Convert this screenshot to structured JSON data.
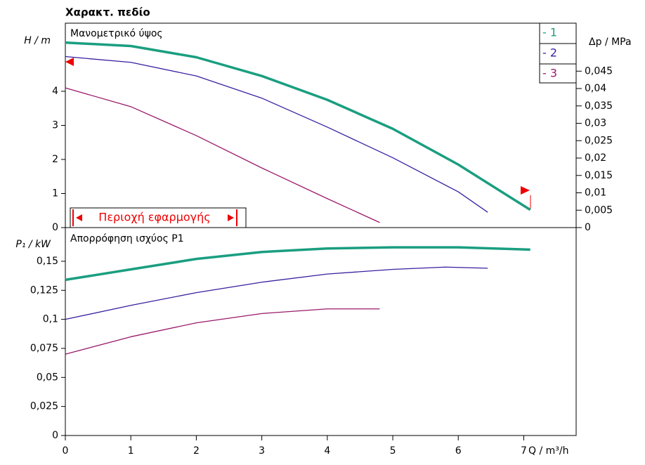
{
  "title": "Χαρακτ. πεδίο",
  "chart_data": [
    {
      "type": "line",
      "title": "Μανομετρικό ύψος",
      "ylabel": "H / m",
      "y2label": "Δp / MPa",
      "annotation": "Περιοχή εφαρμογής",
      "xlim": [
        0,
        7.8
      ],
      "ylim": [
        0,
        6
      ],
      "yticks": [
        0,
        1,
        2,
        3,
        4
      ],
      "y2lim": [
        0,
        0.0588
      ],
      "y2ticks": [
        0,
        {
          "value": 0.005,
          "label": "0,005"
        },
        {
          "value": 0.01,
          "label": "0,01"
        },
        {
          "value": 0.015,
          "label": "0,015"
        },
        {
          "value": 0.02,
          "label": "0,02"
        },
        {
          "value": 0.025,
          "label": "0,025"
        },
        {
          "value": 0.03,
          "label": "0,03"
        },
        {
          "value": 0.035,
          "label": "0,035"
        },
        {
          "value": 0.04,
          "label": "0,04"
        },
        {
          "value": 0.045,
          "label": "0,045"
        }
      ],
      "series": [
        {
          "name": "- 1",
          "color": "#1a9e80",
          "width": 3.5,
          "x": [
            0,
            1,
            2,
            3,
            4,
            5,
            6,
            7.1
          ],
          "values": [
            5.43,
            5.33,
            5.0,
            4.45,
            3.75,
            2.9,
            1.85,
            0.52
          ]
        },
        {
          "name": "- 2",
          "color": "#3a1fa0",
          "width": 1.3,
          "x": [
            0,
            1,
            2,
            3,
            4,
            5,
            6,
            6.45
          ],
          "values": [
            5.02,
            4.85,
            4.45,
            3.8,
            2.95,
            2.05,
            1.05,
            0.45
          ]
        },
        {
          "name": "- 3",
          "color": "#9a1a6a",
          "width": 1.3,
          "x": [
            0,
            1,
            2,
            3,
            4,
            4.8
          ],
          "values": [
            4.1,
            3.55,
            2.7,
            1.75,
            0.85,
            0.15
          ]
        }
      ]
    },
    {
      "type": "line",
      "title": "Απορρόφηση ισχύος P1",
      "ylabel": "P₁ / kW",
      "xlabel": "Q / m³/h",
      "xlim": [
        0,
        7.8
      ],
      "xticks": [
        0,
        1,
        2,
        3,
        4,
        5,
        6,
        7
      ],
      "ylim": [
        0,
        0.179
      ],
      "yticks": [
        0,
        {
          "value": 0.025,
          "label": "0,025"
        },
        {
          "value": 0.05,
          "label": "0,05"
        },
        {
          "value": 0.075,
          "label": "0,075"
        },
        {
          "value": 0.1,
          "label": "0,1"
        },
        {
          "value": 0.125,
          "label": "0,125"
        },
        {
          "value": 0.15,
          "label": "0,15"
        }
      ],
      "series": [
        {
          "color": "#1a9e80",
          "width": 3.5,
          "x": [
            0,
            1,
            2,
            3,
            4,
            5,
            6,
            7.1
          ],
          "values": [
            0.134,
            0.143,
            0.152,
            0.158,
            0.161,
            0.162,
            0.162,
            0.16
          ]
        },
        {
          "color": "#3a1fa0",
          "width": 1.3,
          "x": [
            0,
            1,
            2,
            3,
            4,
            5,
            5.8,
            6.45
          ],
          "values": [
            0.1,
            0.112,
            0.123,
            0.132,
            0.139,
            0.143,
            0.145,
            0.144
          ]
        },
        {
          "color": "#9a1a6a",
          "width": 1.3,
          "x": [
            0,
            1,
            2,
            3,
            4,
            4.8
          ],
          "values": [
            0.07,
            0.085,
            0.097,
            0.105,
            0.109,
            0.109
          ]
        }
      ]
    }
  ]
}
